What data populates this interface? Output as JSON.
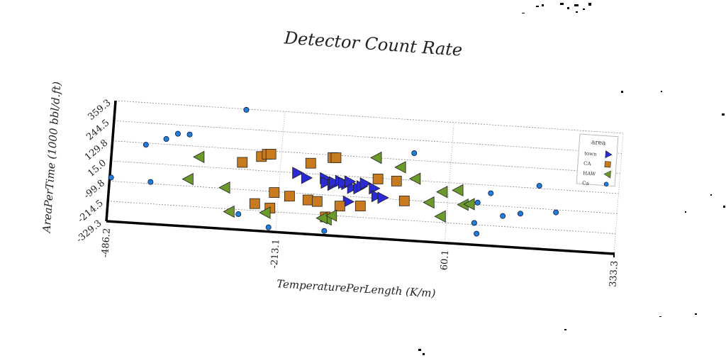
{
  "chart_data": {
    "type": "scatter",
    "title": "Detector Count Rate",
    "xlabel": "TemperaturePerLength (K/m)",
    "ylabel": "AreaPerTime (1000 bbl/d.ft)",
    "x_ticks": [
      "-486.2",
      "-213.1",
      "60.1",
      "333.3"
    ],
    "x_tick_values": [
      -486.2,
      -213.1,
      60.1,
      333.3
    ],
    "y_ticks": [
      "-329.3",
      "-214.5",
      "-99.8",
      "15.0",
      "129.8",
      "244.5",
      "359.3"
    ],
    "y_tick_values": [
      -329.3,
      -214.5,
      -99.8,
      15.0,
      129.8,
      244.5,
      359.3
    ],
    "xlim": [
      -486.2,
      333.3
    ],
    "ylim": [
      -329.3,
      359.3
    ],
    "grid": true,
    "grid_style": "dashed",
    "legend": {
      "title": "area",
      "placement": "top-right"
    },
    "series": [
      {
        "name": "town",
        "marker": "triangle-right",
        "color": "#2b2bd6",
        "points": [
          [
            -185,
            15
          ],
          [
            -170,
            -10
          ],
          [
            -140,
            -5
          ],
          [
            -138,
            -30
          ],
          [
            -127,
            -40
          ],
          [
            -125,
            -25
          ],
          [
            -115,
            -15
          ],
          [
            -105,
            -30
          ],
          [
            -110,
            -25
          ],
          [
            -95,
            -50
          ],
          [
            -100,
            -15
          ],
          [
            -85,
            -50
          ],
          [
            -80,
            -38
          ],
          [
            -75,
            -20
          ],
          [
            -60,
            -45
          ],
          [
            -55,
            -88
          ],
          [
            -45,
            -95
          ],
          [
            -100,
            -130
          ]
        ]
      },
      {
        "name": "CA",
        "marker": "square",
        "color": "#c87a1e",
        "points": [
          [
            -245,
            95
          ],
          [
            -236,
            110
          ],
          [
            -230,
            112
          ],
          [
            -275,
            55
          ],
          [
            -165,
            75
          ],
          [
            -130,
            115
          ],
          [
            -125,
            115
          ],
          [
            -55,
            10
          ],
          [
            -25,
            5
          ],
          [
            -195,
            -120
          ],
          [
            -165,
            -135
          ],
          [
            -150,
            -140
          ],
          [
            -113,
            -158
          ],
          [
            -80,
            -150
          ],
          [
            -10,
            -105
          ],
          [
            -220,
            -105
          ],
          [
            -250,
            -175
          ],
          [
            -225,
            -195
          ],
          [
            -135,
            -225
          ]
        ]
      },
      {
        "name": "HAW",
        "marker": "triangle-left",
        "color": "#6b9a2a",
        "points": [
          [
            -345,
            70
          ],
          [
            -360,
            -60
          ],
          [
            -300,
            -95
          ],
          [
            -290,
            -230
          ],
          [
            -232,
            -223
          ],
          [
            -133,
            -239
          ],
          [
            -140,
            -233
          ],
          [
            -125,
            -215
          ],
          [
            -60,
            130
          ],
          [
            -20,
            85
          ],
          [
            5,
            25
          ],
          [
            50,
            -40
          ],
          [
            75,
            -25
          ],
          [
            85,
            -105
          ],
          [
            95,
            -100
          ],
          [
            30,
            -105
          ],
          [
            50,
            -180
          ]
        ]
      },
      {
        "name": "Ca",
        "marker": "circle",
        "color": "#1f7ed8",
        "points": [
          [
            -484,
            -79
          ],
          [
            -420,
            -90
          ],
          [
            -400,
            160
          ],
          [
            -382,
            194
          ],
          [
            -363,
            194
          ],
          [
            -432,
            120
          ],
          [
            -275,
            355
          ],
          [
            -275,
            -241
          ],
          [
            -225,
            -305
          ],
          [
            -135,
            -305
          ],
          [
            0,
            170
          ],
          [
            108,
            -88
          ],
          [
            128,
            -30
          ],
          [
            105,
            -205
          ],
          [
            150,
            -155
          ],
          [
            178,
            -135
          ],
          [
            205,
            30
          ],
          [
            235,
            -115
          ],
          [
            110,
            -265
          ]
        ]
      }
    ]
  }
}
